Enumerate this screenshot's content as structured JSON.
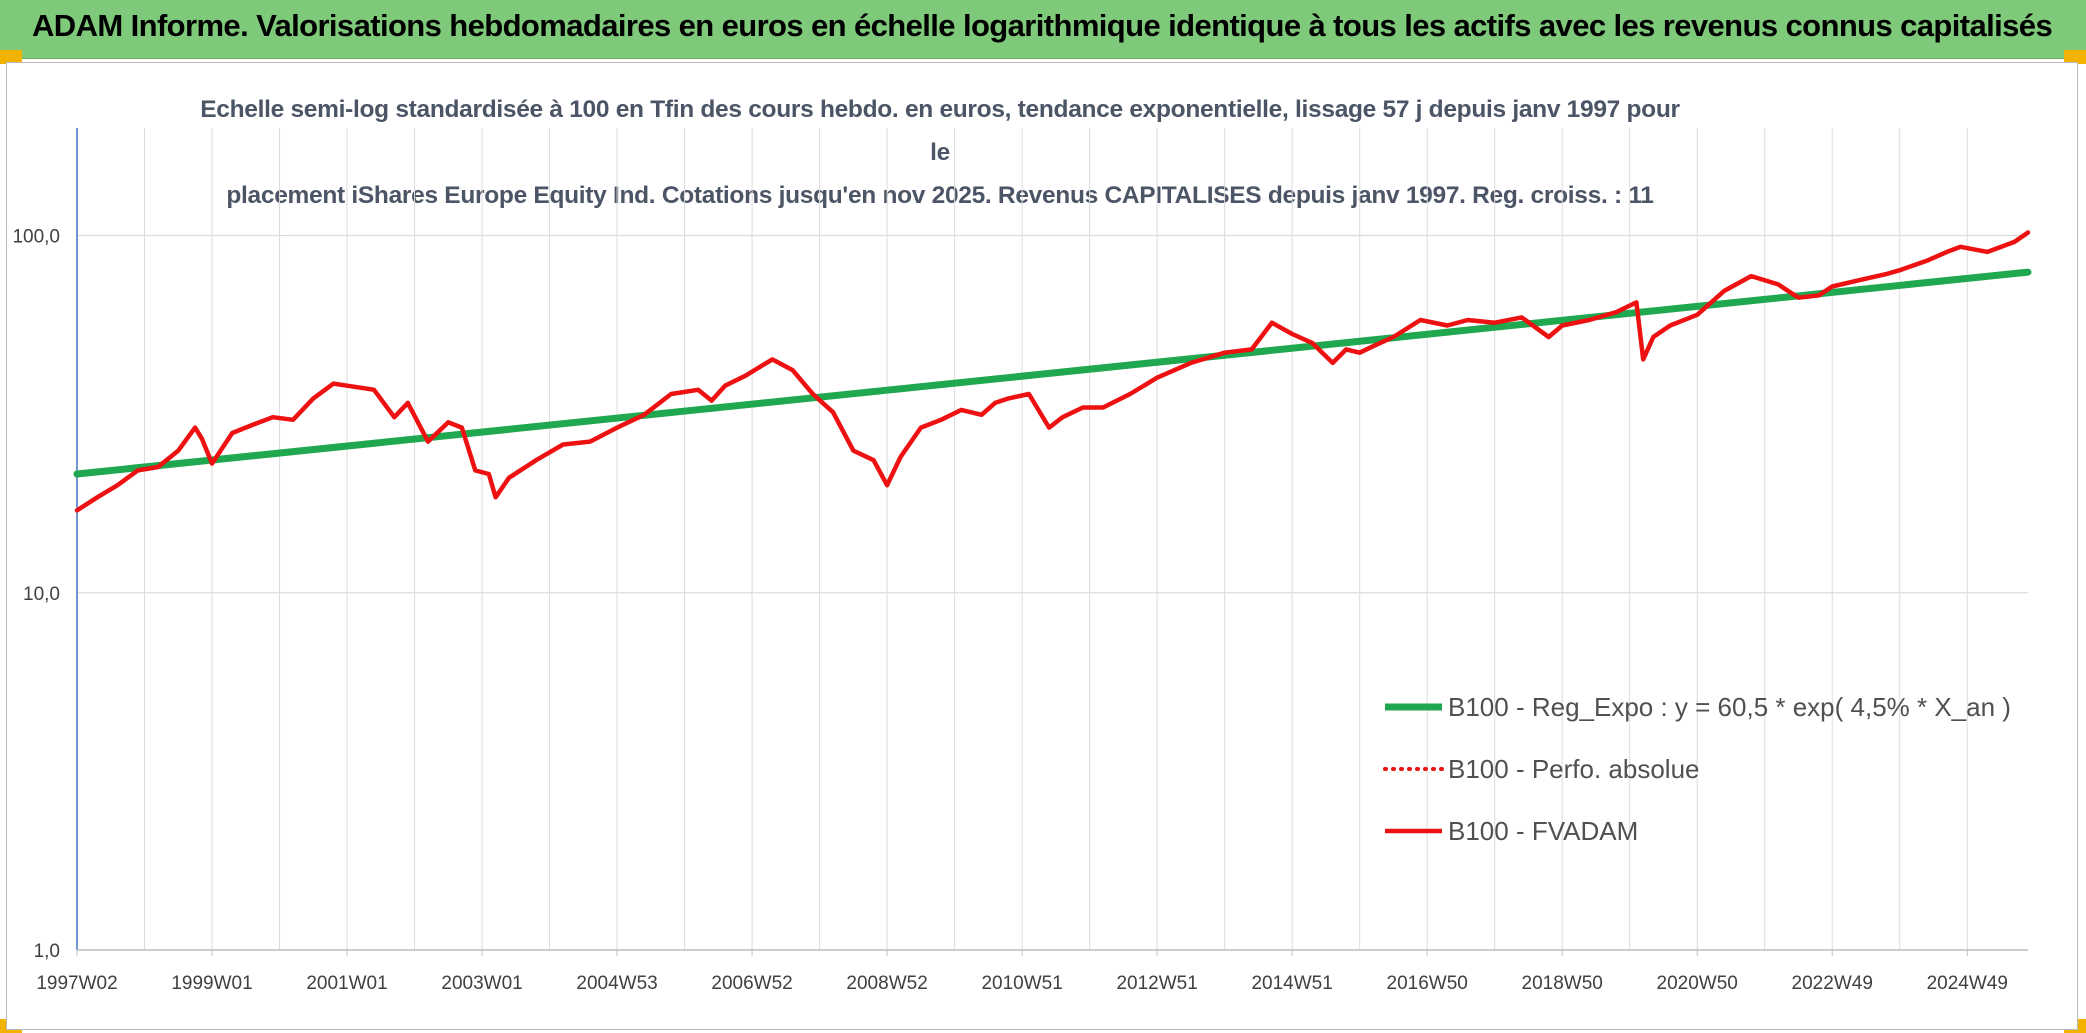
{
  "header": {
    "banner_title": "ADAM Informe. Valorisations hebdomadaires en euros en échelle logarithmique identique à tous les actifs avec les revenus connus capitalisés"
  },
  "colors": {
    "banner": "#7fc97a",
    "trend": "#1fa84f",
    "fvadam": "#ee1111",
    "grid": "#dcdcdc"
  },
  "chart_data": {
    "type": "line",
    "title_line1": "Echelle semi-log standardisée à 100 en Tfin des cours hebdo. en euros, tendance exponentielle, lissage 57 j depuis janv 1997 pour le",
    "title_line2": "placement iShares Europe Equity Ind. Cotations jusqu'en nov 2025. Revenus CAPITALISES depuis janv 1997. Reg. croiss. : 11",
    "y_scale": "log",
    "ylim": [
      1,
      200
    ],
    "y_ticks": [
      {
        "value": 1,
        "label": "1,0"
      },
      {
        "value": 10,
        "label": "10,0"
      },
      {
        "value": 100,
        "label": "100,0"
      }
    ],
    "xlim": [
      1997.0,
      2025.9
    ],
    "x_ticks": [
      {
        "x": 1997.0,
        "label": "1997W02"
      },
      {
        "x": 1999.0,
        "label": "1999W01"
      },
      {
        "x": 2001.0,
        "label": "2001W01"
      },
      {
        "x": 2003.0,
        "label": "2003W01"
      },
      {
        "x": 2005.0,
        "label": "2004W53"
      },
      {
        "x": 2007.0,
        "label": "2006W52"
      },
      {
        "x": 2009.0,
        "label": "2008W52"
      },
      {
        "x": 2011.0,
        "label": "2010W51"
      },
      {
        "x": 2013.0,
        "label": "2012W51"
      },
      {
        "x": 2015.0,
        "label": "2014W51"
      },
      {
        "x": 2017.0,
        "label": "2016W50"
      },
      {
        "x": 2019.0,
        "label": "2018W50"
      },
      {
        "x": 2021.0,
        "label": "2020W50"
      },
      {
        "x": 2023.0,
        "label": "2022W49"
      },
      {
        "x": 2025.0,
        "label": "2024W49"
      }
    ],
    "legend_position": "bottom-right",
    "series": [
      {
        "name": "B100 - Reg_Expo : y = 60,5 * exp( 4,5% *  X_an )",
        "style": "solid-thick",
        "x": [
          1997.0,
          2025.9
        ],
        "values": [
          21.5,
          79.0
        ]
      },
      {
        "name": "B100 - Perfo. absolue",
        "style": "dotted",
        "x": [],
        "values": []
      },
      {
        "name": "B100 - FVADAM",
        "style": "solid",
        "x": [
          1997.0,
          1997.3,
          1997.6,
          1997.9,
          1998.2,
          1998.5,
          1998.75,
          1998.85,
          1999.0,
          1999.3,
          1999.6,
          1999.9,
          2000.2,
          2000.5,
          2000.8,
          2001.0,
          2001.2,
          2001.4,
          2001.7,
          2001.9,
          2002.2,
          2002.5,
          2002.7,
          2002.9,
          2003.1,
          2003.2,
          2003.4,
          2003.8,
          2004.2,
          2004.6,
          2005.0,
          2005.4,
          2005.8,
          2006.2,
          2006.4,
          2006.6,
          2006.9,
          2007.3,
          2007.6,
          2007.9,
          2008.2,
          2008.5,
          2008.8,
          2009.0,
          2009.2,
          2009.5,
          2009.8,
          2010.1,
          2010.4,
          2010.6,
          2010.8,
          2011.1,
          2011.4,
          2011.6,
          2011.9,
          2012.2,
          2012.6,
          2013.0,
          2013.5,
          2014.0,
          2014.4,
          2014.7,
          2015.0,
          2015.3,
          2015.6,
          2015.8,
          2016.0,
          2016.2,
          2016.5,
          2016.9,
          2017.3,
          2017.6,
          2018.0,
          2018.4,
          2018.8,
          2019.0,
          2019.4,
          2019.8,
          2020.1,
          2020.2,
          2020.35,
          2020.6,
          2021.0,
          2021.4,
          2021.8,
          2022.2,
          2022.5,
          2022.8,
          2023.0,
          2023.4,
          2023.8,
          2024.0,
          2024.4,
          2024.7,
          2024.9,
          2025.3,
          2025.7,
          2025.9
        ],
        "values": [
          17.0,
          18.5,
          20.0,
          22.0,
          22.5,
          25.0,
          29.0,
          27.0,
          23.0,
          28.0,
          29.5,
          31.0,
          30.5,
          35.0,
          38.5,
          38.0,
          37.5,
          37.0,
          31.0,
          34.0,
          26.5,
          30.0,
          29.0,
          22.0,
          21.5,
          18.5,
          21.0,
          23.5,
          26.0,
          26.5,
          29.0,
          31.5,
          36.0,
          37.0,
          34.5,
          38.0,
          40.5,
          45.0,
          42.0,
          36.0,
          32.0,
          25.0,
          23.5,
          20.0,
          24.0,
          29.0,
          30.5,
          32.5,
          31.5,
          34.0,
          35.0,
          36.0,
          29.0,
          31.0,
          33.0,
          33.0,
          36.0,
          40.0,
          44.0,
          47.0,
          48.0,
          57.0,
          53.0,
          50.0,
          44.0,
          48.0,
          47.0,
          49.0,
          52.0,
          58.0,
          56.0,
          58.0,
          57.0,
          59.0,
          52.0,
          56.0,
          58.0,
          61.0,
          65.0,
          45.0,
          52.0,
          56.0,
          60.0,
          70.0,
          77.0,
          73.0,
          67.0,
          68.0,
          72.0,
          75.0,
          78.0,
          80.0,
          85.0,
          90.0,
          93.0,
          90.0,
          96.0,
          102.0
        ]
      }
    ]
  }
}
